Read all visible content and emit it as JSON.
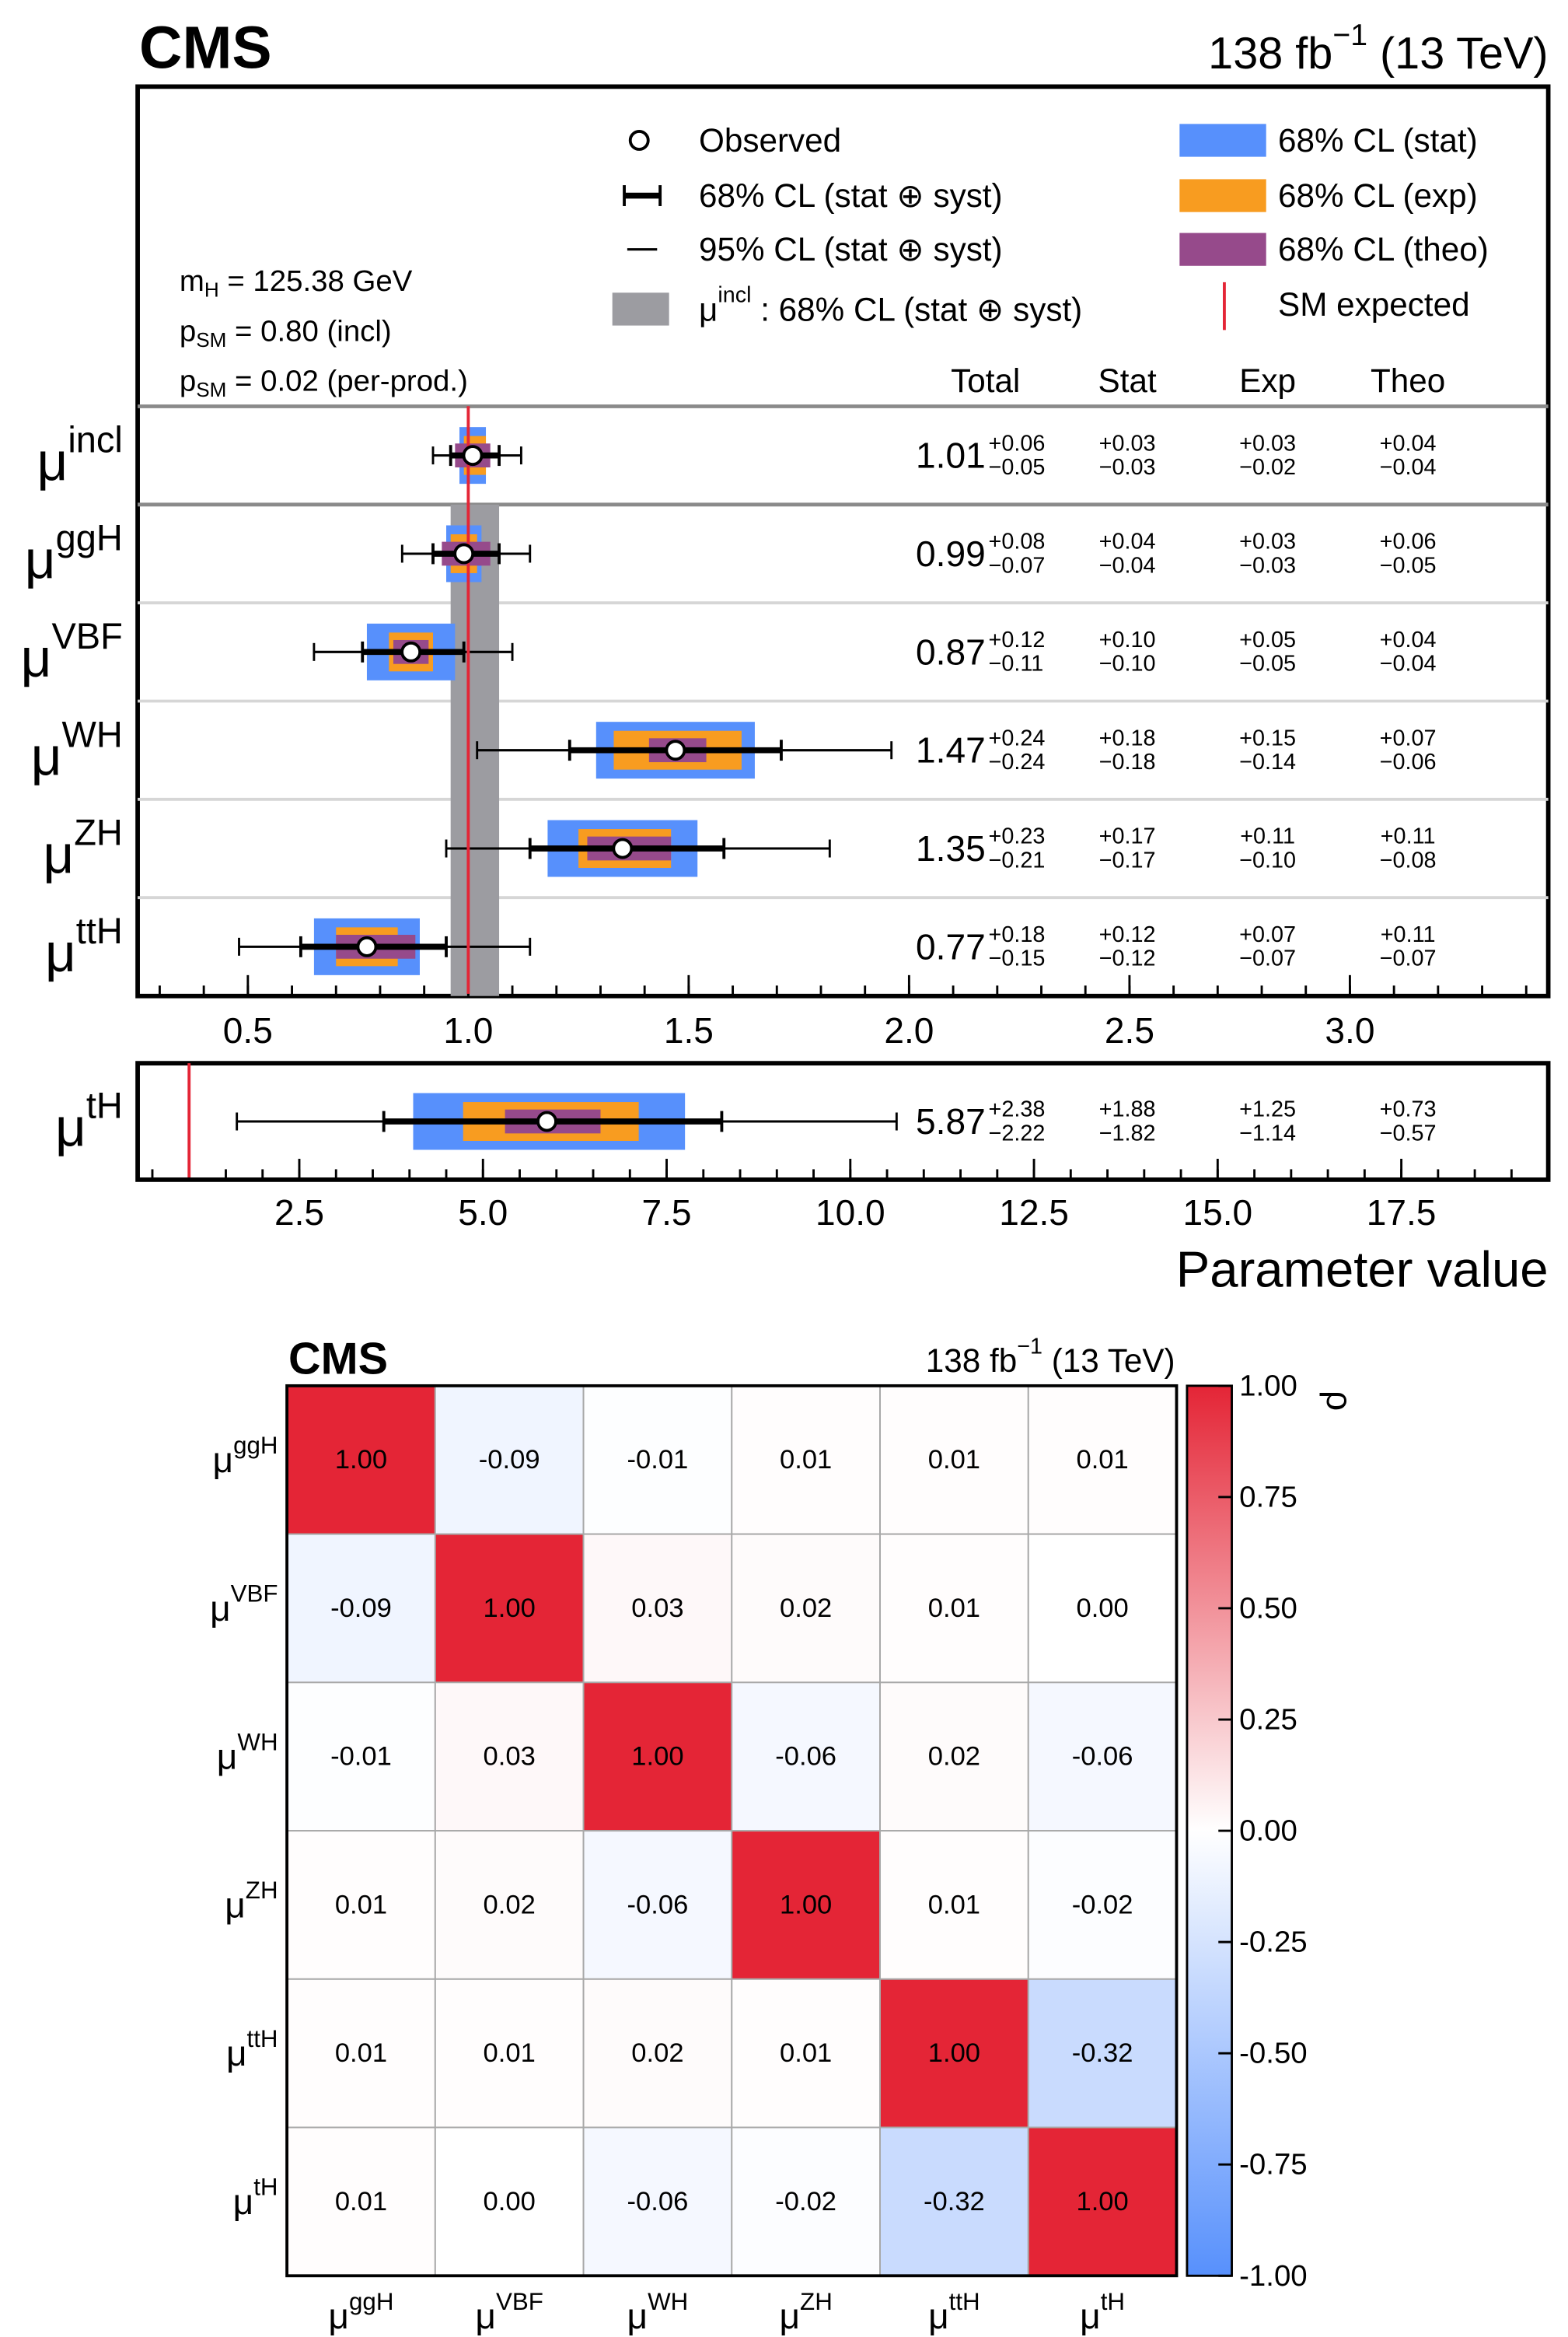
{
  "chart_data": [
    {
      "type": "interval",
      "title": "CMS",
      "luminosity": [
        "138 fb",
        "−1",
        " (13 TeV)"
      ],
      "markers": {
        "observed": "Observed",
        "total": "68% CL (stat ⊕ syst)",
        "ci95": "95% CL (stat ⊕ syst)"
      },
      "incl_band": {
        "name": [
          "μ",
          "incl",
          " : 68% CL (stat ⊕ syst)"
        ],
        "color": "#9c9ca1"
      },
      "reference": {
        "name": "SM expected",
        "value": 1,
        "color": "#e42536"
      },
      "bands": [
        {
          "name": "68% CL (stat)",
          "color": "#5790fc"
        },
        {
          "name": "68% CL (exp)",
          "color": "#f89c20"
        },
        {
          "name": "68% CL (theo)",
          "color": "#964a8b"
        }
      ],
      "info": [
        [
          "m",
          "H",
          " = 125.38 GeV"
        ],
        [
          "p",
          "SM",
          " = 0.80 (incl)"
        ],
        [
          "p",
          "SM",
          " = 0.02 (per-prod.)"
        ]
      ],
      "columns": [
        "Total",
        "Stat",
        "Exp",
        "Theo"
      ],
      "xlabel": "Parameter value",
      "panels": [
        {
          "xlim": [
            0.25,
            3.45
          ],
          "xminor": 0.1,
          "xticks": [
            0.5,
            {
              "value": 1,
              "label": "1.0"
            },
            1.5,
            {
              "value": 2,
              "label": "2.0"
            },
            2.5,
            {
              "value": 3,
              "label": "3.0"
            }
          ],
          "rows": [
            {
              "label": [
                "μ",
                "incl"
              ],
              "value": 1.01,
              "ci95": [
                0.92,
                1.12
              ],
              "total": {
                "values": [
                  0.06,
                  -0.05
                ],
                "value_labels": [
                  "+0.06",
                  "−0.05"
                ]
              },
              "bands": [
                {
                  "values": [
                    0.03,
                    -0.03
                  ],
                  "value_labels": [
                    "+0.03",
                    "−0.03"
                  ]
                },
                {
                  "values": [
                    0.03,
                    -0.02
                  ],
                  "value_labels": [
                    "+0.03",
                    "−0.02"
                  ]
                },
                {
                  "values": [
                    0.04,
                    -0.04
                  ],
                  "value_labels": [
                    "+0.04",
                    "−0.04"
                  ]
                }
              ]
            },
            {
              "label": [
                "μ",
                "ggH"
              ],
              "value": 0.99,
              "ci95": [
                0.85,
                1.14
              ],
              "total": {
                "values": [
                  0.08,
                  -0.07
                ],
                "value_labels": [
                  "+0.08",
                  "−0.07"
                ]
              },
              "bands": [
                {
                  "values": [
                    0.04,
                    -0.04
                  ],
                  "value_labels": [
                    "+0.04",
                    "−0.04"
                  ]
                },
                {
                  "values": [
                    0.03,
                    -0.03
                  ],
                  "value_labels": [
                    "+0.03",
                    "−0.03"
                  ]
                },
                {
                  "values": [
                    0.06,
                    -0.05
                  ],
                  "value_labels": [
                    "+0.06",
                    "−0.05"
                  ]
                }
              ]
            },
            {
              "label": [
                "μ",
                "VBF"
              ],
              "value": 0.87,
              "ci95": [
                0.65,
                1.1
              ],
              "total": {
                "values": [
                  0.12,
                  -0.11
                ],
                "value_labels": [
                  "+0.12",
                  "−0.11"
                ]
              },
              "bands": [
                {
                  "values": [
                    0.1,
                    -0.1
                  ],
                  "value_labels": [
                    "+0.10",
                    "−0.10"
                  ]
                },
                {
                  "values": [
                    0.05,
                    -0.05
                  ],
                  "value_labels": [
                    "+0.05",
                    "−0.05"
                  ]
                },
                {
                  "values": [
                    0.04,
                    -0.04
                  ],
                  "value_labels": [
                    "+0.04",
                    "−0.04"
                  ]
                }
              ]
            },
            {
              "label": [
                "μ",
                "WH"
              ],
              "value": 1.47,
              "ci95": [
                1.02,
                1.96
              ],
              "total": {
                "values": [
                  0.24,
                  -0.24
                ],
                "value_labels": [
                  "+0.24",
                  "−0.24"
                ]
              },
              "bands": [
                {
                  "values": [
                    0.18,
                    -0.18
                  ],
                  "value_labels": [
                    "+0.18",
                    "−0.18"
                  ]
                },
                {
                  "values": [
                    0.15,
                    -0.14
                  ],
                  "value_labels": [
                    "+0.15",
                    "−0.14"
                  ]
                },
                {
                  "values": [
                    0.07,
                    -0.06
                  ],
                  "value_labels": [
                    "+0.07",
                    "−0.06"
                  ]
                }
              ]
            },
            {
              "label": [
                "μ",
                "ZH"
              ],
              "value": 1.35,
              "ci95": [
                0.95,
                1.82
              ],
              "total": {
                "values": [
                  0.23,
                  -0.21
                ],
                "value_labels": [
                  "+0.23",
                  "−0.21"
                ]
              },
              "bands": [
                {
                  "values": [
                    0.17,
                    -0.17
                  ],
                  "value_labels": [
                    "+0.17",
                    "−0.17"
                  ]
                },
                {
                  "values": [
                    0.11,
                    -0.1
                  ],
                  "value_labels": [
                    "+0.11",
                    "−0.10"
                  ]
                },
                {
                  "values": [
                    0.11,
                    -0.08
                  ],
                  "value_labels": [
                    "+0.11",
                    "−0.08"
                  ]
                }
              ]
            },
            {
              "label": [
                "μ",
                "ttH"
              ],
              "value": 0.77,
              "ci95": [
                0.48,
                1.14
              ],
              "total": {
                "values": [
                  0.18,
                  -0.15
                ],
                "value_labels": [
                  "+0.18",
                  "−0.15"
                ]
              },
              "bands": [
                {
                  "values": [
                    0.12,
                    -0.12
                  ],
                  "value_labels": [
                    "+0.12",
                    "−0.12"
                  ]
                },
                {
                  "values": [
                    0.07,
                    -0.07
                  ],
                  "value_labels": [
                    "+0.07",
                    "−0.07"
                  ]
                },
                {
                  "values": [
                    0.11,
                    -0.07
                  ],
                  "value_labels": [
                    "+0.11",
                    "−0.07"
                  ]
                }
              ]
            }
          ]
        },
        {
          "xlim": [
            0.3,
            19.5
          ],
          "xminor": 0.5,
          "xticks": [
            2.5,
            {
              "value": 5,
              "label": "5.0"
            },
            7.5,
            {
              "value": 10,
              "label": "10.0"
            },
            12.5,
            {
              "value": 15,
              "label": "15.0"
            },
            17.5
          ],
          "rows": [
            {
              "label": [
                "μ",
                "tH"
              ],
              "value": 5.87,
              "ci95": [
                1.65,
                10.63
              ],
              "total": {
                "values": [
                  2.38,
                  -2.22
                ],
                "value_labels": [
                  "+2.38",
                  "−2.22"
                ]
              },
              "bands": [
                {
                  "values": [
                    1.88,
                    -1.82
                  ],
                  "value_labels": [
                    "+1.88",
                    "−1.82"
                  ]
                },
                {
                  "values": [
                    1.25,
                    -1.14
                  ],
                  "value_labels": [
                    "+1.25",
                    "−1.14"
                  ]
                },
                {
                  "values": [
                    0.73,
                    -0.57
                  ],
                  "value_labels": [
                    "+0.73",
                    "−0.57"
                  ]
                }
              ]
            }
          ]
        }
      ]
    },
    {
      "type": "heatmap",
      "title": "CMS",
      "luminosity": [
        "138 fb",
        "−1",
        " (13 TeV)"
      ],
      "categories": [
        [
          "μ",
          "ggH"
        ],
        [
          "μ",
          "VBF"
        ],
        [
          "μ",
          "WH"
        ],
        [
          "μ",
          "ZH"
        ],
        [
          "μ",
          "ttH"
        ],
        [
          "μ",
          "tH"
        ]
      ],
      "values": [
        [
          1,
          -0.09,
          -0.01,
          0.01,
          0.01,
          0.01
        ],
        [
          -0.09,
          1,
          0.03,
          0.02,
          0.01,
          0
        ],
        [
          -0.01,
          0.03,
          1,
          -0.06,
          0.02,
          -0.06
        ],
        [
          0.01,
          0.02,
          -0.06,
          1,
          0.01,
          -0.02
        ],
        [
          0.01,
          0.01,
          0.02,
          0.01,
          1,
          -0.32
        ],
        [
          0.01,
          0,
          -0.06,
          -0.02,
          -0.32,
          1
        ]
      ],
      "value_labels": [
        [
          "1.00",
          "-0.09",
          "-0.01",
          "0.01",
          "0.01",
          "0.01"
        ],
        [
          "-0.09",
          "1.00",
          "0.03",
          "0.02",
          "0.01",
          "0.00"
        ],
        [
          "-0.01",
          "0.03",
          "1.00",
          "-0.06",
          "0.02",
          "-0.06"
        ],
        [
          "0.01",
          "0.02",
          "-0.06",
          "1.00",
          "0.01",
          "-0.02"
        ],
        [
          "0.01",
          "0.01",
          "0.02",
          "0.01",
          "1.00",
          "-0.32"
        ],
        [
          "0.01",
          "0.00",
          "-0.06",
          "-0.02",
          "-0.32",
          "1.00"
        ]
      ],
      "zlim": [
        -1,
        1
      ],
      "zticks": [
        {
          "value": 1,
          "label": "1.00"
        },
        0.75,
        {
          "value": 0.5,
          "label": "0.50"
        },
        0.25,
        {
          "value": 0,
          "label": "0.00"
        },
        -0.25,
        {
          "value": -0.5,
          "label": "-0.50"
        },
        -0.75,
        {
          "value": -1,
          "label": "-1.00"
        }
      ],
      "zlabel": "ρ",
      "colormap": [
        "#5790fc",
        "#ffffff",
        "#e42536"
      ]
    }
  ]
}
